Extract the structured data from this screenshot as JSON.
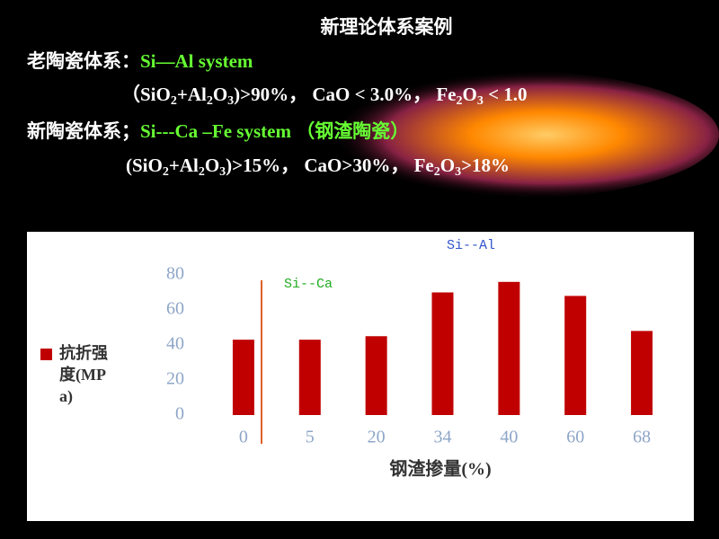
{
  "slide": {
    "title": "新理论体系案例",
    "lines": [
      [
        {
          "text": "老陶瓷体系：",
          "color": "#ffffff"
        },
        {
          "text": "Si—Al system",
          "color": "#66ff33"
        }
      ],
      [
        {
          "text": "（SiO",
          "color": "#ffffff"
        },
        {
          "text": "2",
          "color": "#ffffff",
          "sub": true
        },
        {
          "text": "+Al",
          "color": "#ffffff"
        },
        {
          "text": "2",
          "color": "#ffffff",
          "sub": true
        },
        {
          "text": "O",
          "color": "#ffffff"
        },
        {
          "text": "3",
          "color": "#ffffff",
          "sub": true
        },
        {
          "text": ")>90%，  CaO < 3.0%，  Fe",
          "color": "#ffffff"
        },
        {
          "text": "2",
          "color": "#ffffff",
          "sub": true
        },
        {
          "text": "O",
          "color": "#ffffff"
        },
        {
          "text": "3",
          "color": "#ffffff",
          "sub": true
        },
        {
          "text": " < 1.0",
          "color": "#ffffff"
        }
      ],
      [
        {
          "text": "新陶瓷体系；",
          "color": "#ffffff"
        },
        {
          "text": "Si---Ca –Fe system （钢渣陶瓷）",
          "color": "#66ff33"
        }
      ],
      [
        {
          "text": "(SiO",
          "color": "#ffffff"
        },
        {
          "text": "2",
          "color": "#ffffff",
          "sub": true
        },
        {
          "text": "+Al",
          "color": "#ffffff"
        },
        {
          "text": "2",
          "color": "#ffffff",
          "sub": true
        },
        {
          "text": "O",
          "color": "#ffffff"
        },
        {
          "text": "3",
          "color": "#ffffff",
          "sub": true
        },
        {
          "text": ")>15%，  CaO>30%，   Fe",
          "color": "#ffffff"
        },
        {
          "text": "2",
          "color": "#ffffff",
          "sub": true
        },
        {
          "text": "O",
          "color": "#ffffff"
        },
        {
          "text": "3",
          "color": "#ffffff",
          "sub": true
        },
        {
          "text": ">18%",
          "color": "#ffffff"
        }
      ]
    ]
  },
  "chart_data": {
    "type": "bar",
    "x_label": "钢渣掺量(%)",
    "categories": [
      "0",
      "5",
      "20",
      "34",
      "40",
      "60",
      "68"
    ],
    "series": [
      {
        "name": "抗折强度(MPa)",
        "color": "#c00000",
        "values": [
          43,
          43,
          45,
          70,
          76,
          68,
          48
        ]
      }
    ],
    "ylim": [
      0,
      80
    ],
    "yticks": [
      0,
      20,
      40,
      60,
      80
    ],
    "grid": false,
    "legend": "left",
    "annotations": [
      "Si--Ca",
      "Si--Al"
    ]
  }
}
